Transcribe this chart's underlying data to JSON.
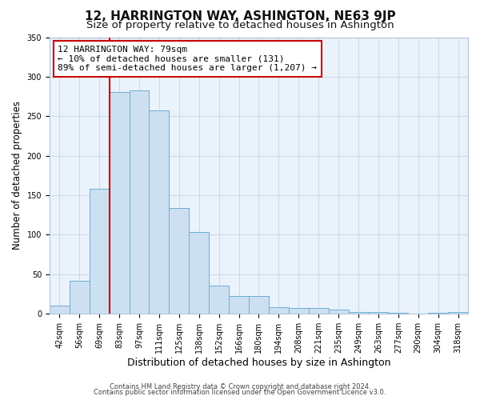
{
  "title": "12, HARRINGTON WAY, ASHINGTON, NE63 9JP",
  "subtitle": "Size of property relative to detached houses in Ashington",
  "xlabel": "Distribution of detached houses by size in Ashington",
  "ylabel": "Number of detached properties",
  "bar_labels": [
    "42sqm",
    "56sqm",
    "69sqm",
    "83sqm",
    "97sqm",
    "111sqm",
    "125sqm",
    "138sqm",
    "152sqm",
    "166sqm",
    "180sqm",
    "194sqm",
    "208sqm",
    "221sqm",
    "235sqm",
    "249sqm",
    "263sqm",
    "277sqm",
    "290sqm",
    "304sqm",
    "318sqm"
  ],
  "bar_values": [
    10,
    42,
    158,
    281,
    283,
    257,
    134,
    103,
    36,
    22,
    23,
    8,
    7,
    7,
    5,
    2,
    2,
    1,
    0,
    1,
    2
  ],
  "bar_color": "#cde0f2",
  "bar_edge_color": "#6aaed6",
  "vline_color": "#cc0000",
  "ylim": [
    0,
    350
  ],
  "yticks": [
    0,
    50,
    100,
    150,
    200,
    250,
    300,
    350
  ],
  "annotation_text": "12 HARRINGTON WAY: 79sqm\n← 10% of detached houses are smaller (131)\n89% of semi-detached houses are larger (1,207) →",
  "annotation_box_color": "#ffffff",
  "annotation_box_edge": "#cc0000",
  "footer1": "Contains HM Land Registry data © Crown copyright and database right 2024.",
  "footer2": "Contains public sector information licensed under the Open Government Licence v3.0.",
  "title_fontsize": 11,
  "subtitle_fontsize": 9.5,
  "tick_fontsize": 7,
  "ylabel_fontsize": 8.5,
  "xlabel_fontsize": 9,
  "footer_fontsize": 6,
  "bg_color": "#eaf2fb",
  "grid_color": "#c8d8ea"
}
